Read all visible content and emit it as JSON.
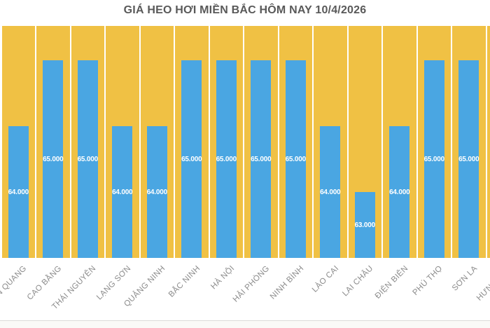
{
  "title": "GIÁ HEO HƠI MIỀN BẮC HÔM NAY 10/4/2026",
  "chart_data": {
    "type": "bar",
    "title": "GIÁ HEO HƠI MIỀN BẮC HÔM NAY 10/4/2026",
    "categories": [
      "TUYÊN QUANG",
      "CAO BẰNG",
      "THÁI NGUYÊN",
      "LẠNG SƠN",
      "QUẢNG NINH",
      "BẮC NINH",
      "HÀ NỘI",
      "HẢI PHÒNG",
      "NINH BÌNH",
      "LÀO CAI",
      "LAI CHÂU",
      "ĐIỆN BIÊN",
      "PHÚ THỌ",
      "SƠN LA",
      "HƯNG YÊN"
    ],
    "values": [
      64000,
      65000,
      65000,
      64000,
      64000,
      65000,
      65000,
      65000,
      65000,
      64000,
      63000,
      64000,
      65000,
      65000,
      null
    ],
    "value_label_format": "thousands-dot",
    "xlabel": "",
    "ylabel": "",
    "ylim": [
      62000,
      65520
    ],
    "grid": false,
    "legend": false,
    "x_tick_rotation_deg": 45,
    "notes": "first and last columns cropped by image edges; value labels drawn centered inside bars",
    "colors": {
      "column_background": "#F0C144",
      "bar": "#4AA6E2",
      "value_label": "#FFFFFF",
      "tick_label": "#8B8B8B",
      "title": "#595959"
    }
  }
}
